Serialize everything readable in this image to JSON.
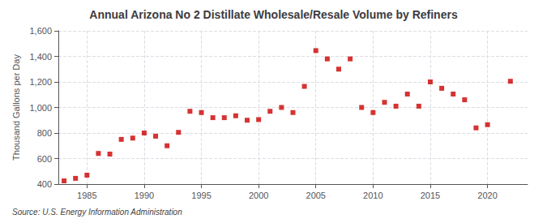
{
  "chart_data": {
    "type": "scatter",
    "title": "Annual Arizona No 2 Distillate Wholesale/Resale Volume by Refiners",
    "ylabel": "Thousand Gallons per Day",
    "source": "Source: U.S. Energy Information Administration",
    "x": [
      1983,
      1984,
      1985,
      1986,
      1987,
      1988,
      1989,
      1990,
      1991,
      1992,
      1993,
      1994,
      1995,
      1996,
      1997,
      1998,
      1999,
      2000,
      2001,
      2002,
      2003,
      2004,
      2005,
      2006,
      2007,
      2008,
      2009,
      2010,
      2011,
      2012,
      2013,
      2014,
      2015,
      2016,
      2017,
      2018,
      2019,
      2020,
      2022
    ],
    "values": [
      425,
      445,
      470,
      640,
      635,
      750,
      760,
      800,
      775,
      700,
      805,
      970,
      960,
      920,
      920,
      935,
      900,
      905,
      970,
      1000,
      960,
      1165,
      1445,
      1380,
      1300,
      1380,
      1000,
      960,
      1040,
      1010,
      1105,
      1010,
      1200,
      1150,
      1105,
      1060,
      840,
      865,
      1205
    ],
    "color": "#cc0000",
    "marker": "square",
    "xlim": [
      1982.5,
      2023.5
    ],
    "xticks": [
      1985,
      1990,
      1995,
      2000,
      2005,
      2010,
      2015,
      2020
    ],
    "ylim": [
      400,
      1600
    ],
    "yticks": [
      400,
      600,
      800,
      {
        "value": 1000,
        "label": "1,000"
      },
      {
        "value": 1200,
        "label": "1,200"
      },
      {
        "value": 1400,
        "label": "1,400"
      },
      {
        "value": 1600,
        "label": "1,600"
      }
    ],
    "grid": true
  }
}
